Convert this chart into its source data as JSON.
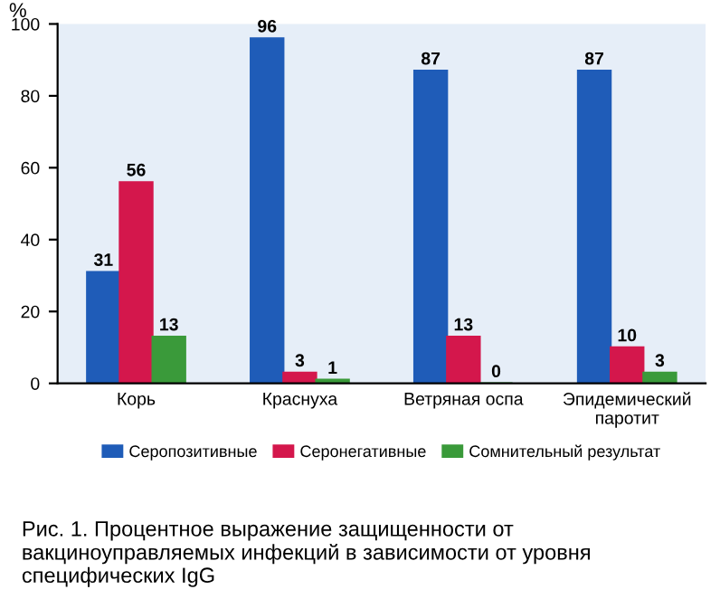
{
  "chart_data": {
    "type": "bar",
    "ylabel": "%",
    "categories": [
      "Корь",
      "Краснуха",
      "Ветряная оспа",
      "Эпидемический паротит"
    ],
    "series": [
      {
        "name": "Серопозитивные",
        "color": "#1f5cb8",
        "values": [
          31,
          96,
          87,
          87
        ]
      },
      {
        "name": "Серонегативные",
        "color": "#d4174c",
        "values": [
          56,
          3,
          13,
          10
        ]
      },
      {
        "name": "Сомнительный результат",
        "color": "#3a9a3a",
        "values": [
          13,
          1,
          0,
          3
        ]
      }
    ],
    "ylim": [
      0,
      100
    ],
    "yticks": [
      0,
      20,
      40,
      60,
      80,
      100
    ],
    "grid": false,
    "legend": "bottom",
    "data_labels": true,
    "annotations": [
      "Рис. 1. Процентное выражение защищенности от вакциноуправляемых инфекций в зависимости от уровня специфических IgG"
    ]
  }
}
